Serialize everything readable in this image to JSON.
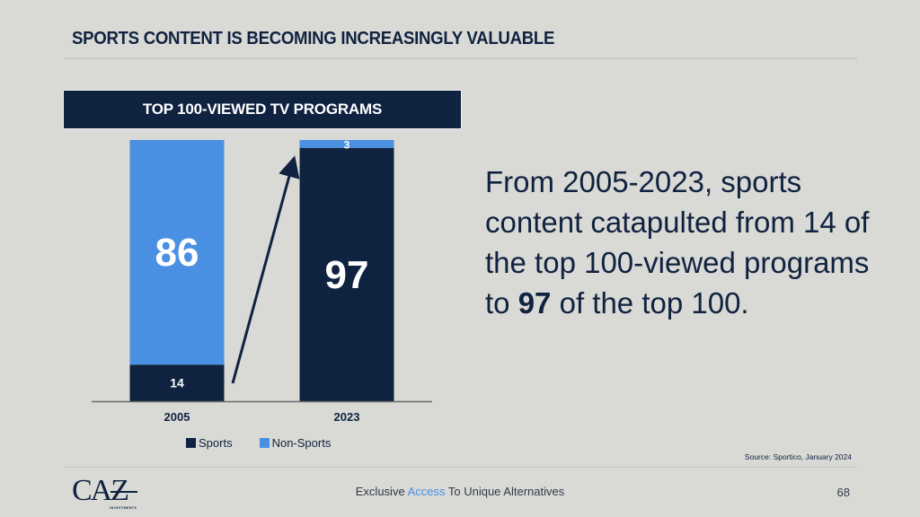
{
  "header": {
    "title": "SPORTS CONTENT IS BECOMING INCREASINGLY VALUABLE"
  },
  "colors": {
    "navy": "#0f2240",
    "blue": "#4a90e2",
    "background": "#d9d9d5"
  },
  "chart_data": {
    "type": "bar",
    "stacked": true,
    "title": "TOP 100-VIEWED TV PROGRAMS",
    "categories": [
      "2005",
      "2023"
    ],
    "series": [
      {
        "name": "Sports",
        "color": "#0f2240",
        "values": [
          14,
          97
        ],
        "labels": [
          "14",
          "97"
        ]
      },
      {
        "name": "Non-Sports",
        "color": "#4a90e2",
        "values": [
          86,
          3
        ],
        "labels": [
          "86",
          "3"
        ]
      }
    ],
    "xlabel": "",
    "ylabel": "",
    "ylim": [
      0,
      100
    ],
    "grid": false,
    "legend": "bottom",
    "annotation": "arrow rising from 2005 Sports to 2023 Sports"
  },
  "narrative": {
    "part1": "From 2005-2023, sports content catapulted from 14 of the top 100-viewed programs to ",
    "bold": "97",
    "part2": " of the top 100."
  },
  "source": "Source: Sportico, January 2024",
  "footer": {
    "logo_text": "CAZ",
    "logo_sub": "INVESTMENTS",
    "tagline_before": "Exclusive ",
    "tagline_accent": "Access",
    "tagline_after": " To Unique Alternatives",
    "page_number": "68"
  }
}
